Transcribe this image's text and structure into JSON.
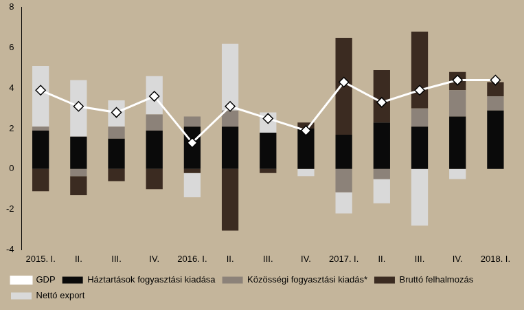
{
  "chart_data": {
    "type": "bar",
    "stacked": true,
    "grid": false,
    "legend": "bottom",
    "categories": [
      "2015. I.",
      "II.",
      "III.",
      "IV.",
      "2016. I.",
      "II.",
      "III.",
      "IV.",
      "2017. I.",
      "II.",
      "III.",
      "IV.",
      "2018. I."
    ],
    "ylim": [
      -4,
      8
    ],
    "yticks": [
      -4,
      -2,
      0,
      2,
      4,
      6,
      8
    ],
    "series": [
      {
        "name": "Háztartások fogyasztási kiadása",
        "type": "bar",
        "color": "#0a0a0a",
        "values": [
          1.9,
          1.6,
          1.5,
          1.9,
          2.1,
          2.1,
          1.8,
          2.0,
          1.7,
          2.3,
          2.1,
          2.6,
          2.9
        ]
      },
      {
        "name": "Közösségi fogyasztási kiadás*",
        "type": "bar",
        "color": "#8c8279",
        "values": [
          0.2,
          -0.35,
          0.6,
          0.8,
          0.5,
          0.8,
          0,
          0,
          -1.15,
          -0.5,
          0.9,
          1.3,
          0.7
        ]
      },
      {
        "name": "Bruttó felhalmozás",
        "type": "bar",
        "color": "#3b2b21",
        "values": [
          -1.1,
          -0.95,
          -0.6,
          -1.0,
          -0.2,
          -3.05,
          -0.2,
          0.3,
          4.8,
          2.6,
          3.8,
          0.9,
          0.7
        ]
      },
      {
        "name": "Nettó export",
        "type": "bar",
        "color": "#d9d9d9",
        "values": [
          3.0,
          2.8,
          1.3,
          1.9,
          -1.2,
          3.3,
          1.0,
          -0.35,
          -1.05,
          -1.2,
          -2.8,
          -0.5,
          0
        ]
      },
      {
        "name": "GDP",
        "type": "line",
        "color": "#ffffff",
        "marker": "diamond",
        "values": [
          3.9,
          3.1,
          2.8,
          3.6,
          1.3,
          3.1,
          2.5,
          1.9,
          4.3,
          3.3,
          3.9,
          4.4,
          4.4
        ]
      }
    ]
  }
}
